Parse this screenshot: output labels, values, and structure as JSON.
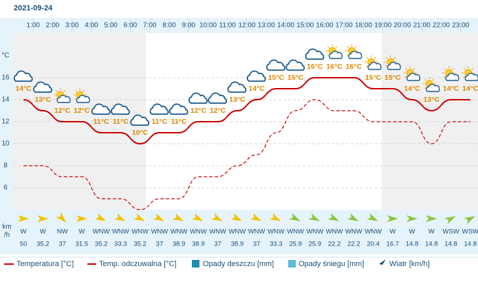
{
  "chart_data": {
    "type": "line",
    "title": "2021-09-24",
    "categories": [
      null,
      "1:00",
      "2:00",
      "3:00",
      "4:00",
      "5:00",
      "6:00",
      "7:00",
      "8:00",
      "9:00",
      "10:00",
      "11:00",
      "12:00",
      "13:00",
      "14:00",
      "15:00",
      "16:00",
      "17:00",
      "18:00",
      "19:00",
      "20:00",
      "21:00",
      "22:00",
      "23:00"
    ],
    "y_label": "°C",
    "ylim": [
      4,
      20
    ],
    "yticks": [
      6,
      8,
      10,
      12,
      14,
      16
    ],
    "grid": true,
    "series": [
      {
        "name": "Temperatura [°C]",
        "color": "#cc0000",
        "dashed": false,
        "values": [
          14,
          13,
          12,
          12,
          11,
          11,
          10,
          11,
          11,
          12,
          12,
          13,
          14,
          15,
          15,
          16,
          16,
          16,
          15,
          15,
          14,
          13,
          14,
          14
        ],
        "value_labels": [
          "14°C",
          "13°C",
          "12°C",
          "12°C",
          "11°C",
          "11°C",
          "10°C",
          "11°C",
          "11°C",
          "12°C",
          "12°C",
          "13°C",
          "14°C",
          "15°C",
          "15°C",
          "16°C",
          "16°C",
          "16°C",
          "15°C",
          "15°C",
          "14°C",
          "13°C",
          "14°C",
          "14°C"
        ]
      },
      {
        "name": "Temp. odczuwalna [°C]",
        "color": "#cc0000",
        "dashed": true,
        "values": [
          8,
          8,
          7,
          7,
          5,
          5,
          4,
          5,
          5,
          7,
          7,
          8,
          9,
          11,
          13,
          14,
          13,
          13,
          12,
          12,
          12,
          10,
          12,
          12
        ]
      }
    ],
    "legend_extra": [
      {
        "name": "Opady deszczu [mm]",
        "color": "#1a8fb0"
      },
      {
        "name": "Opady śniegu [mm]",
        "color": "#5bbcd6"
      },
      {
        "name": "Wiatr [km/h]",
        "color": "#2a4a6a"
      }
    ],
    "wind": {
      "unit_lines": [
        "km",
        "/h"
      ],
      "directions": [
        "W",
        "W",
        "NW",
        "W",
        "WNW",
        "WNW",
        "WNW",
        "WNW",
        "WNW",
        "WNW",
        "WNW",
        "WNW",
        "WNW",
        "WNW",
        "WNW",
        "WNW",
        "WNW",
        "WNW",
        "WNW",
        "W",
        "W",
        "W",
        "WSW",
        "WSW"
      ],
      "speeds": [
        50,
        35.2,
        37,
        31.5,
        35.2,
        33.3,
        35.2,
        37,
        38.9,
        38.9,
        37,
        38.9,
        37,
        33.3,
        25.9,
        25.9,
        22.2,
        22.2,
        20.4,
        16.7,
        14.8,
        14.8,
        14.8,
        14.8
      ]
    }
  }
}
